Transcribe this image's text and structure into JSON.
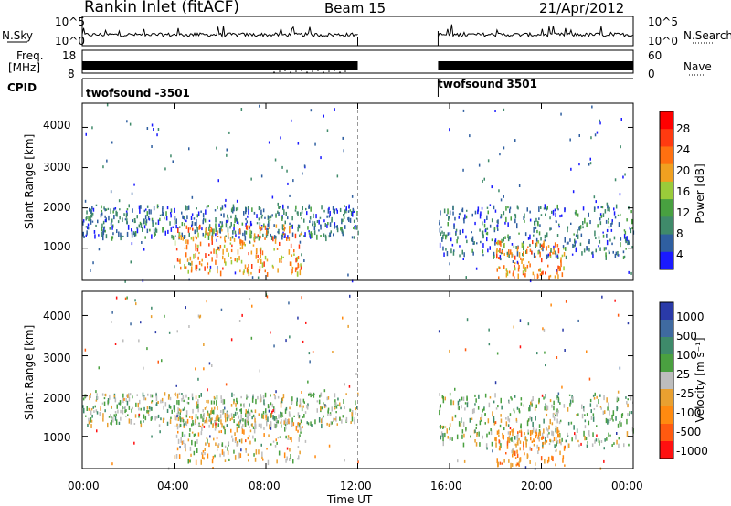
{
  "header": {
    "station": "Rankin Inlet (fitACF)",
    "beam": "Beam 15",
    "date": "21/Apr/2012"
  },
  "status_panels": {
    "noise_left_label": "N.Sky",
    "noise_right_label": "N.Search",
    "noise_ticks_left": [
      "10^5",
      "10^0"
    ],
    "noise_ticks_right": [
      "10^5",
      "10^0"
    ],
    "freq_label_line1": "Freq.",
    "freq_label_line2": "[MHz]",
    "freq_ticks": [
      "18",
      "8"
    ],
    "nave_label": "Nave",
    "nave_ticks": [
      "60",
      "0"
    ],
    "cpid_label": "CPID",
    "cpid_segments": [
      "twofsound -3501",
      "twofsound 3501"
    ]
  },
  "colors": {
    "power_scale": [
      "#1a1aff",
      "#2f5fa0",
      "#3f8a6a",
      "#48a040",
      "#9acb3a",
      "#f0a020",
      "#ff7010",
      "#ff3a10",
      "#ff0000"
    ],
    "velocity_scale": [
      "#2a3aa8",
      "#3f6aa0",
      "#3e8a6a",
      "#4aa040",
      "#bdbdbd",
      "#e9a030",
      "#ff8a10",
      "#ff5a10",
      "#ff1010"
    ],
    "ground_scatter": "#bdbdbd"
  },
  "chart_data": [
    {
      "type": "heatmap",
      "panel": "power",
      "ylabel": "Slant Range [km]",
      "yticks": [
        "1000",
        "2000",
        "3000",
        "4000"
      ],
      "ylim": [
        200,
        4600
      ],
      "xlim": [
        "00:00",
        "24:00"
      ],
      "data_gap": [
        "12:00",
        "15:30"
      ],
      "colorbar_label": "Power [dB]",
      "colorbar_ticks": [
        "4",
        "8",
        "12",
        "16",
        "20",
        "24",
        "28"
      ],
      "features": [
        {
          "time_range": [
            "00:00",
            "12:00"
          ],
          "range_km": [
            1300,
            2100
          ],
          "power_db": 10
        },
        {
          "time_range": [
            "04:00",
            "09:30"
          ],
          "range_km": [
            400,
            1600
          ],
          "power_db": 26
        },
        {
          "time_range": [
            "15:30",
            "24:00"
          ],
          "range_km": [
            800,
            2100
          ],
          "power_db": 12
        },
        {
          "time_range": [
            "18:00",
            "21:00"
          ],
          "range_km": [
            300,
            1200
          ],
          "power_db": 26
        }
      ]
    },
    {
      "type": "heatmap",
      "panel": "velocity",
      "ylabel": "Slant Range [km]",
      "yticks": [
        "1000",
        "2000",
        "3000",
        "4000"
      ],
      "ylim": [
        200,
        4600
      ],
      "xlabel": "Time UT",
      "xticks": [
        "00:00",
        "04:00",
        "08:00",
        "12:00",
        "16:00",
        "20:00",
        "00:00"
      ],
      "xlim": [
        "00:00",
        "24:00"
      ],
      "data_gap": [
        "12:00",
        "15:30"
      ],
      "colorbar_label": "Velocity [m s⁻¹]",
      "colorbar_ticks": [
        "1000",
        "500",
        "100",
        "25",
        "-25",
        "-100",
        "-500",
        "-1000"
      ],
      "features": [
        {
          "time_range": [
            "00:00",
            "12:00"
          ],
          "range_km": [
            1300,
            2100
          ],
          "velocity_ms": 0
        },
        {
          "time_range": [
            "04:00",
            "09:30"
          ],
          "range_km": [
            400,
            1600
          ],
          "velocity_ms": -200
        },
        {
          "time_range": [
            "15:30",
            "24:00"
          ],
          "range_km": [
            800,
            2100
          ],
          "velocity_ms": 0
        },
        {
          "time_range": [
            "18:00",
            "21:00"
          ],
          "range_km": [
            300,
            1200
          ],
          "velocity_ms": -300
        }
      ]
    }
  ]
}
